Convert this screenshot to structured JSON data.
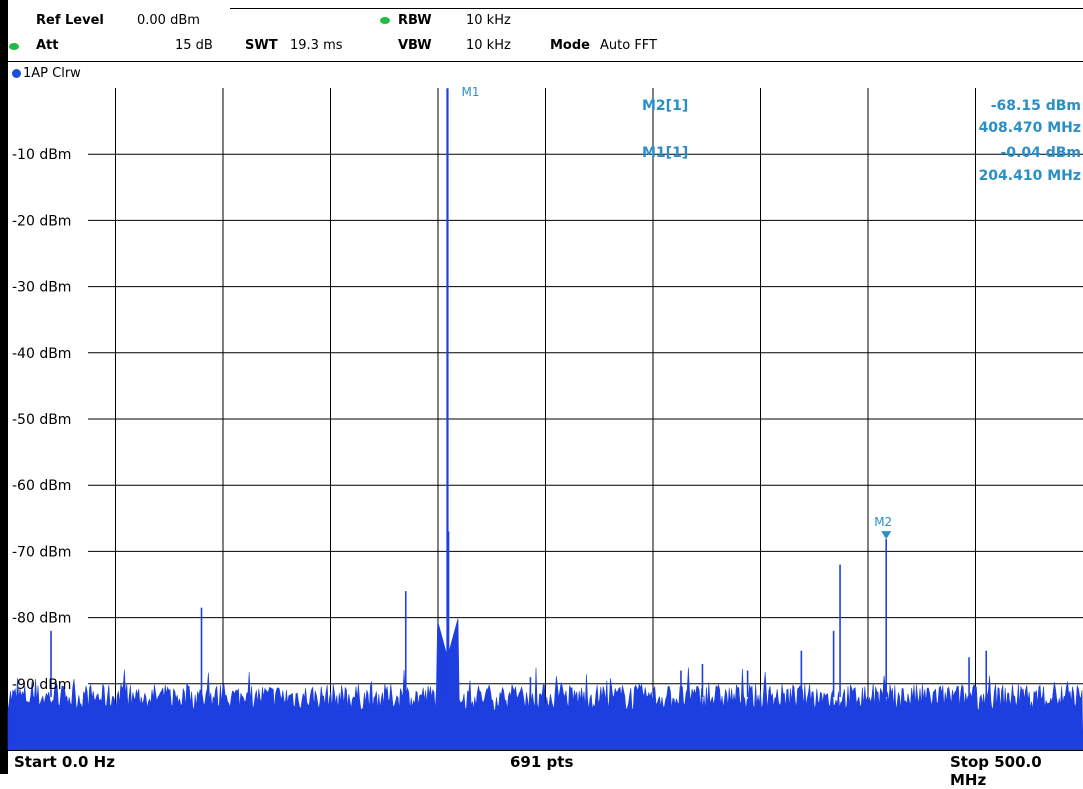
{
  "header": {
    "ref_level_label": "Ref Level",
    "ref_level_value": "0.00 dBm",
    "att_label": "Att",
    "att_value": "15 dB",
    "swt_label": "SWT",
    "swt_value": "19.3 ms",
    "rbw_label": "RBW",
    "rbw_value": "10 kHz",
    "vbw_label": "VBW",
    "vbw_value": "10 kHz",
    "mode_label": "Mode",
    "mode_value": "Auto FFT"
  },
  "trace_label": "1AP Clrw",
  "footer": {
    "start": "Start 0.0 Hz",
    "points": "691 pts",
    "stop": "Stop 500.0 MHz"
  },
  "markers_table": [
    {
      "name": "M2[1]",
      "level": "-68.15 dBm",
      "freq": "408.470 MHz"
    },
    {
      "name": "M1[1]",
      "level": "-0.04 dBm",
      "freq": "204.410 MHz"
    }
  ],
  "colors": {
    "trace": "#1d3fe0",
    "marker_text": "#2a8fc8",
    "grid": "#000000",
    "hdr_dot": "#22bb44"
  },
  "chart_data": {
    "type": "line",
    "x_unit": "MHz",
    "y_unit": "dBm",
    "xlim": [
      0,
      500
    ],
    "ylim": [
      -100,
      0
    ],
    "y_ticks": [
      {
        "value": -10,
        "label": "-10 dBm"
      },
      {
        "value": -20,
        "label": "-20 dBm"
      },
      {
        "value": -30,
        "label": "-30 dBm"
      },
      {
        "value": -40,
        "label": "-40 dBm"
      },
      {
        "value": -50,
        "label": "-50 dBm"
      },
      {
        "value": -60,
        "label": "-60 dBm"
      },
      {
        "value": -70,
        "label": "-70 dBm"
      },
      {
        "value": -80,
        "label": "-80 dBm"
      },
      {
        "value": -90,
        "label": "-90 dBm"
      }
    ],
    "x_gridlines": [
      50,
      100,
      150,
      200,
      250,
      300,
      350,
      400,
      450
    ],
    "noise_floor_dbm": -92,
    "spurs": [
      {
        "x": 20,
        "y": -82
      },
      {
        "x": 90,
        "y": -78.5
      },
      {
        "x": 185,
        "y": -76
      },
      {
        "x": 204.41,
        "y": -0.04
      },
      {
        "x": 204.9,
        "y": -67
      },
      {
        "x": 243,
        "y": -89
      },
      {
        "x": 313,
        "y": -88
      },
      {
        "x": 323,
        "y": -87
      },
      {
        "x": 344,
        "y": -88
      },
      {
        "x": 369,
        "y": -85
      },
      {
        "x": 384,
        "y": -82
      },
      {
        "x": 387,
        "y": -72
      },
      {
        "x": 408.47,
        "y": -68.15
      },
      {
        "x": 447,
        "y": -86
      },
      {
        "x": 455,
        "y": -85
      }
    ],
    "markers": [
      {
        "label": "M1",
        "x": 204.41,
        "y": -0.04
      },
      {
        "label": "M2",
        "x": 408.47,
        "y": -68.15
      }
    ]
  }
}
